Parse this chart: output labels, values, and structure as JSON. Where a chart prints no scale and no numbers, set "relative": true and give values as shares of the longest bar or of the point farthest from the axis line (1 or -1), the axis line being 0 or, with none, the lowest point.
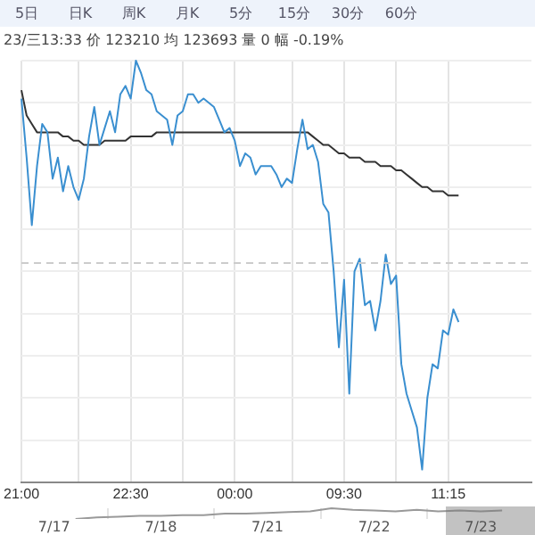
{
  "chart_data": [
    {
      "type": "line",
      "subtitle": "23/三13:33  价 123210  均 123693  量 0  幅 -0.19%",
      "annotations": [
        "5日",
        "日K",
        "周K",
        "月K",
        "5分",
        "15分",
        "30分",
        "60分"
      ],
      "relative": true,
      "grid": true,
      "categories": [
        "21:00",
        null,
        null,
        null,
        null,
        null,
        null,
        null,
        null,
        null,
        null,
        null,
        null,
        null,
        null,
        null,
        null,
        null,
        null,
        null,
        null,
        "22:30",
        null,
        null,
        null,
        null,
        null,
        null,
        null,
        null,
        null,
        null,
        null,
        null,
        null,
        null,
        null,
        null,
        null,
        null,
        null,
        "00:00",
        null,
        null,
        null,
        null,
        null,
        null,
        null,
        null,
        null,
        null,
        null,
        null,
        null,
        null,
        null,
        null,
        null,
        null,
        null,
        null,
        "09:30",
        null,
        null,
        null,
        null,
        null,
        null,
        null,
        null,
        null,
        null,
        null,
        null,
        null,
        null,
        null,
        null,
        null,
        null,
        null,
        "11:15",
        null,
        null,
        null,
        null,
        null,
        null,
        null,
        null,
        null,
        null,
        null,
        null,
        null,
        null,
        null,
        null
      ],
      "series": [
        {
          "color": "#3a8fd0",
          "values": [
            0.91,
            0.77,
            0.61,
            0.75,
            0.85,
            0.83,
            0.72,
            0.77,
            0.69,
            0.75,
            0.7,
            0.67,
            0.72,
            0.82,
            0.89,
            0.8,
            0.84,
            0.88,
            0.83,
            0.92,
            0.94,
            0.91,
            1,
            0.97,
            0.93,
            0.92,
            0.88,
            0.87,
            0.86,
            0.8,
            0.87,
            0.88,
            0.92,
            0.92,
            0.9,
            0.91,
            0.9,
            0.89,
            0.86,
            0.83,
            0.84,
            0.81,
            0.75,
            0.78,
            0.77,
            0.73,
            0.75,
            0.75,
            0.75,
            0.73,
            0.7,
            0.72,
            0.71,
            0.79,
            0.86,
            0.79,
            0.8,
            0.76,
            0.66,
            0.64,
            0.5,
            0.32,
            0.48,
            0.21,
            0.5,
            0.53,
            0.42,
            0.43,
            0.36,
            0.43,
            0.54,
            0.47,
            0.49,
            0.28,
            0.21,
            0.17,
            0.13,
            0.03,
            0.2,
            0.28,
            0.27,
            0.36,
            0.35,
            0.41,
            0.38,
            null,
            null,
            null,
            null,
            null,
            null,
            null,
            null,
            null,
            null,
            null,
            null,
            null,
            null
          ]
        },
        {
          "color": "#333333",
          "values": [
            0.93,
            0.87,
            0.85,
            0.83,
            0.83,
            0.83,
            0.83,
            0.83,
            0.82,
            0.82,
            0.81,
            0.81,
            0.8,
            0.8,
            0.8,
            0.8,
            0.81,
            0.81,
            0.81,
            0.81,
            0.81,
            0.82,
            0.82,
            0.82,
            0.82,
            0.82,
            0.83,
            0.83,
            0.83,
            0.83,
            0.83,
            0.83,
            0.83,
            0.83,
            0.83,
            0.83,
            0.83,
            0.83,
            0.83,
            0.83,
            0.83,
            0.83,
            0.83,
            0.83,
            0.83,
            0.83,
            0.83,
            0.83,
            0.83,
            0.83,
            0.83,
            0.83,
            0.83,
            0.83,
            0.83,
            0.83,
            0.82,
            0.81,
            0.8,
            0.8,
            0.79,
            0.78,
            0.78,
            0.77,
            0.77,
            0.77,
            0.76,
            0.76,
            0.76,
            0.75,
            0.75,
            0.75,
            0.74,
            0.74,
            0.73,
            0.72,
            0.71,
            0.7,
            0.7,
            0.69,
            0.69,
            0.69,
            0.68,
            0.68,
            0.68,
            null,
            null,
            null,
            null,
            null,
            null,
            null,
            null,
            null,
            null,
            null,
            null,
            null,
            null
          ]
        }
      ],
      "ref_lines": [
        {
          "axis": "y",
          "value": 0.52,
          "line_style": "dashed",
          "color": "#cccccc"
        }
      ]
    },
    {
      "type": "line",
      "relative": true,
      "grid": "x",
      "categories": [
        null,
        null,
        "7/17",
        null,
        null,
        null,
        null,
        "7/18",
        null,
        null,
        null,
        null,
        "7/21",
        null,
        null,
        null,
        null,
        "7/22",
        null,
        null,
        null,
        null,
        "7/23",
        null,
        null
      ],
      "series": [
        {
          "color": "#999999",
          "values": [
            null,
            null,
            null,
            0,
            0.14,
            0.21,
            0.29,
            0.29,
            0.36,
            0.36,
            0.5,
            0.5,
            0.57,
            0.64,
            0.71,
            1,
            0.86,
            0.79,
            0.71,
            0.86,
            0.71,
            0.79,
            0.71,
            0.79,
            null
          ]
        }
      ]
    }
  ]
}
